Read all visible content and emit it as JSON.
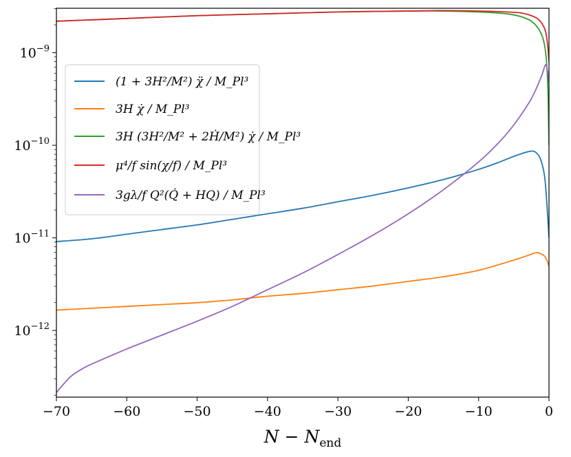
{
  "chart_data": {
    "type": "line",
    "xlabel": "N − N_end",
    "ylabel": "",
    "xlim": [
      -70,
      0
    ],
    "ylim_log10": [
      -12.72,
      -8.52
    ],
    "yscale": "log",
    "grid": false,
    "legend_position": "upper-left",
    "x_ticks": [
      -70,
      -60,
      -50,
      -40,
      -30,
      -20,
      -10,
      0
    ],
    "y_tick_exponents": [
      -12,
      -11,
      -10,
      -9
    ],
    "series": [
      {
        "name": "(1 + 3H²/M²) χ̈ / M_Pl³",
        "color": "#1f77b4",
        "points": [
          [
            -70,
            -11.04
          ],
          [
            -65,
            -11.01
          ],
          [
            -60,
            -10.96
          ],
          [
            -55,
            -10.91
          ],
          [
            -50,
            -10.86
          ],
          [
            -45,
            -10.8
          ],
          [
            -40,
            -10.74
          ],
          [
            -35,
            -10.68
          ],
          [
            -30,
            -10.61
          ],
          [
            -25,
            -10.54
          ],
          [
            -20,
            -10.46
          ],
          [
            -15,
            -10.37
          ],
          [
            -10,
            -10.26
          ],
          [
            -7,
            -10.18
          ],
          [
            -5,
            -10.12
          ],
          [
            -3,
            -10.07
          ],
          [
            -2,
            -10.07
          ],
          [
            -1.2,
            -10.15
          ],
          [
            -0.6,
            -10.35
          ],
          [
            -0.2,
            -10.75
          ],
          [
            0,
            -11.0
          ]
        ]
      },
      {
        "name": "3H χ̇ / M_Pl³",
        "color": "#ff7f0e",
        "points": [
          [
            -70,
            -11.78
          ],
          [
            -65,
            -11.76
          ],
          [
            -60,
            -11.74
          ],
          [
            -55,
            -11.72
          ],
          [
            -50,
            -11.7
          ],
          [
            -45,
            -11.67
          ],
          [
            -40,
            -11.63
          ],
          [
            -35,
            -11.6
          ],
          [
            -30,
            -11.56
          ],
          [
            -25,
            -11.52
          ],
          [
            -20,
            -11.47
          ],
          [
            -15,
            -11.42
          ],
          [
            -10,
            -11.35
          ],
          [
            -5,
            -11.24
          ],
          [
            -3,
            -11.19
          ],
          [
            -1.8,
            -11.16
          ],
          [
            -1.2,
            -11.17
          ],
          [
            -0.6,
            -11.2
          ],
          [
            -0.2,
            -11.26
          ],
          [
            0,
            -11.31
          ]
        ]
      },
      {
        "name": "3H (3H²/M² + 2Ḣ/M²) χ̇ / M_Pl³",
        "color": "#2ca02c",
        "points": [
          [
            -70,
            -8.66
          ],
          [
            -60,
            -8.63
          ],
          [
            -50,
            -8.6
          ],
          [
            -40,
            -8.58
          ],
          [
            -30,
            -8.56
          ],
          [
            -20,
            -8.55
          ],
          [
            -15,
            -8.55
          ],
          [
            -10,
            -8.56
          ],
          [
            -6,
            -8.58
          ],
          [
            -4,
            -8.61
          ],
          [
            -2.5,
            -8.66
          ],
          [
            -1.5,
            -8.74
          ],
          [
            -0.8,
            -8.86
          ],
          [
            -0.4,
            -9.05
          ],
          [
            -0.15,
            -9.4
          ],
          [
            0,
            -10.0
          ]
        ]
      },
      {
        "name": "μ⁴/f sin(χ/f) / M_Pl³",
        "color": "#d62728",
        "points": [
          [
            -70,
            -8.66
          ],
          [
            -60,
            -8.63
          ],
          [
            -50,
            -8.6
          ],
          [
            -40,
            -8.58
          ],
          [
            -30,
            -8.56
          ],
          [
            -20,
            -8.55
          ],
          [
            -15,
            -8.545
          ],
          [
            -10,
            -8.55
          ],
          [
            -6,
            -8.56
          ],
          [
            -4,
            -8.57
          ],
          [
            -2.5,
            -8.6
          ],
          [
            -1.5,
            -8.64
          ],
          [
            -0.8,
            -8.71
          ],
          [
            -0.4,
            -8.8
          ],
          [
            -0.15,
            -8.95
          ],
          [
            0,
            -9.1
          ]
        ]
      },
      {
        "name": "3gλ/f Q²(Q̇ + HQ) / M_Pl³",
        "color": "#9467bd",
        "points": [
          [
            -70,
            -12.67
          ],
          [
            -68,
            -12.5
          ],
          [
            -66,
            -12.4
          ],
          [
            -64,
            -12.33
          ],
          [
            -60,
            -12.2
          ],
          [
            -55,
            -12.05
          ],
          [
            -50,
            -11.9
          ],
          [
            -45,
            -11.74
          ],
          [
            -40,
            -11.56
          ],
          [
            -35,
            -11.38
          ],
          [
            -30,
            -11.18
          ],
          [
            -25,
            -10.97
          ],
          [
            -20,
            -10.74
          ],
          [
            -15,
            -10.48
          ],
          [
            -10,
            -10.18
          ],
          [
            -7,
            -9.96
          ],
          [
            -5,
            -9.78
          ],
          [
            -3,
            -9.56
          ],
          [
            -2,
            -9.42
          ],
          [
            -1,
            -9.24
          ],
          [
            -0.5,
            -9.13
          ],
          [
            -0.2,
            -9.2
          ],
          [
            0,
            -9.32
          ]
        ]
      }
    ]
  },
  "axes": {
    "x_tick_labels": [
      "−70",
      "−60",
      "−50",
      "−40",
      "−30",
      "−20",
      "−10",
      "0"
    ],
    "y_tick_base": "10",
    "y_tick_exps": [
      "−12",
      "−11",
      "−10",
      "−9"
    ],
    "xlabel_main": "N − N",
    "xlabel_sub": "end"
  }
}
